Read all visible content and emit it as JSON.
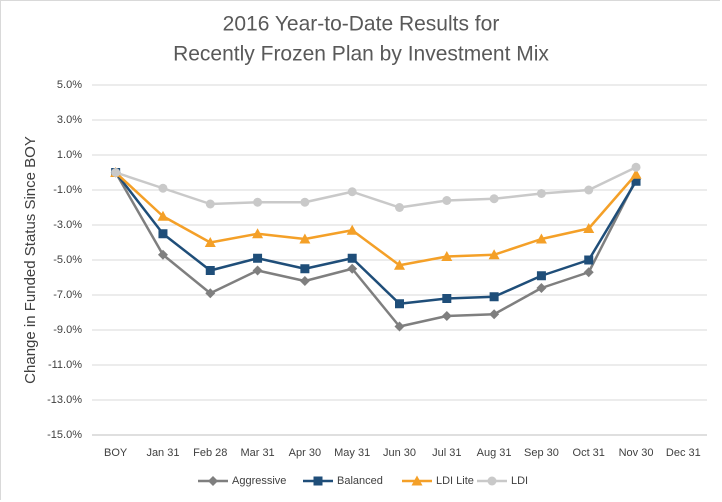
{
  "chart_data": {
    "type": "line",
    "title": [
      "2016 Year-to-Date Results for",
      "Recently Frozen Plan by Investment Mix"
    ],
    "ylabel": "Change in Funded Status Since BOY",
    "categories": [
      "BOY",
      "Jan 31",
      "Feb 28",
      "Mar 31",
      "Apr 30",
      "May 31",
      "Jun 30",
      "Jul 31",
      "Aug 31",
      "Sep 30",
      "Oct 31",
      "Nov 30",
      "Dec 31"
    ],
    "series": [
      {
        "name": "Aggressive",
        "color": "#7f7f7f",
        "marker": "diamond",
        "values": [
          0,
          -4.7,
          -6.9,
          -5.6,
          -6.2,
          -5.5,
          -8.8,
          -8.2,
          -8.1,
          -6.6,
          -5.7,
          -0.4,
          null
        ]
      },
      {
        "name": "Balanced",
        "color": "#1f4e79",
        "marker": "square",
        "values": [
          0,
          -3.5,
          -5.6,
          -4.9,
          -5.5,
          -4.9,
          -7.5,
          -7.2,
          -7.1,
          -5.9,
          -5.0,
          -0.5,
          null
        ]
      },
      {
        "name": "LDI Lite",
        "color": "#f4a028",
        "marker": "triangle",
        "values": [
          0,
          -2.5,
          -4.0,
          -3.5,
          -3.8,
          -3.3,
          -5.3,
          -4.8,
          -4.7,
          -3.8,
          -3.2,
          -0.1,
          null
        ]
      },
      {
        "name": "LDI",
        "color": "#c9c9c9",
        "marker": "circle",
        "values": [
          0,
          -0.9,
          -1.8,
          -1.7,
          -1.7,
          -1.1,
          -2.0,
          -1.6,
          -1.5,
          -1.2,
          -1.0,
          0.3,
          null
        ]
      }
    ],
    "ylim": [
      -15,
      5
    ],
    "yticks": [
      {
        "value": 5,
        "label": "5.0%"
      },
      {
        "value": 3,
        "label": "3.0%"
      },
      {
        "value": 1,
        "label": "1.0%"
      },
      {
        "value": -1,
        "label": "-1.0%"
      },
      {
        "value": -3,
        "label": "-3.0%"
      },
      {
        "value": -5,
        "label": "-5.0%"
      },
      {
        "value": -7,
        "label": "-7.0%"
      },
      {
        "value": -9,
        "label": "-9.0%"
      },
      {
        "value": -11,
        "label": "-11.0%"
      },
      {
        "value": -13,
        "label": "-13.0%"
      },
      {
        "value": -15,
        "label": "-15.0%"
      }
    ],
    "grid": true,
    "legend": "bottom"
  }
}
